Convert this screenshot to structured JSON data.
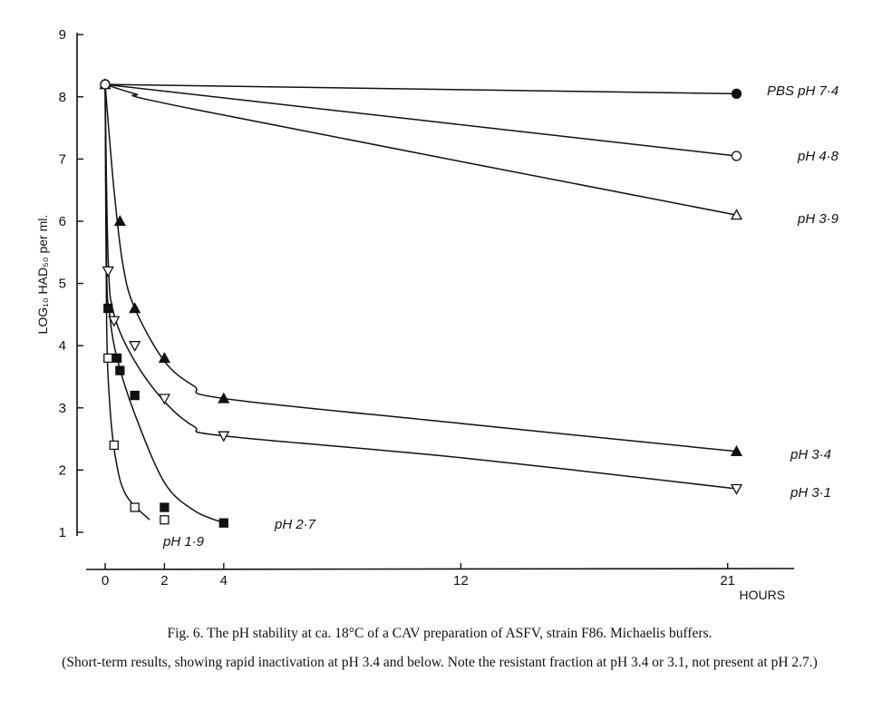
{
  "chart_data": {
    "type": "line",
    "ylabel": "LOG₁₀ HAD₅₀ per ml.",
    "xlabel": "HOURS",
    "xlim": [
      0,
      23
    ],
    "ylim": [
      1,
      9
    ],
    "x_ticks": [
      0,
      2,
      4,
      12,
      21
    ],
    "y_ticks": [
      1,
      2,
      3,
      4,
      5,
      6,
      7,
      8,
      9
    ],
    "grid": false,
    "series": [
      {
        "name": "PBS pH 7·4",
        "marker": "filled-circle",
        "points": [
          [
            0,
            8.2
          ],
          [
            21.3,
            8.05
          ]
        ],
        "curve": [
          [
            0,
            8.2
          ],
          [
            21.3,
            8.05
          ]
        ]
      },
      {
        "name": "pH 4·8",
        "marker": "open-circle",
        "points": [
          [
            0,
            8.2
          ],
          [
            21.3,
            7.05
          ]
        ],
        "curve": [
          [
            0,
            8.2
          ],
          [
            21.3,
            7.05
          ]
        ]
      },
      {
        "name": "pH 3·9",
        "marker": "open-triangle-up",
        "points": [
          [
            0,
            8.2
          ],
          [
            21.3,
            6.1
          ]
        ],
        "curve": [
          [
            0,
            8.2
          ],
          [
            1,
            8.05
          ],
          [
            3,
            7.8
          ],
          [
            21.3,
            6.1
          ]
        ]
      },
      {
        "name": "pH 3·4",
        "marker": "filled-triangle-up",
        "points": [
          [
            0.5,
            6.0
          ],
          [
            1,
            4.6
          ],
          [
            2,
            3.8
          ],
          [
            4,
            3.15
          ],
          [
            21.3,
            2.3
          ]
        ],
        "curve": [
          [
            0,
            8.2
          ],
          [
            0.3,
            6.5
          ],
          [
            0.6,
            5.3
          ],
          [
            1,
            4.6
          ],
          [
            2,
            3.75
          ],
          [
            3,
            3.35
          ],
          [
            4,
            3.15
          ],
          [
            12,
            2.75
          ],
          [
            21.3,
            2.3
          ]
        ]
      },
      {
        "name": "pH 3·1",
        "marker": "open-triangle-down",
        "points": [
          [
            0.1,
            5.2
          ],
          [
            0.3,
            4.4
          ],
          [
            1,
            4.0
          ],
          [
            2,
            3.15
          ],
          [
            4,
            2.55
          ],
          [
            21.3,
            1.7
          ]
        ],
        "curve": [
          [
            0,
            8.2
          ],
          [
            0.1,
            5.4
          ],
          [
            0.3,
            4.5
          ],
          [
            1,
            3.75
          ],
          [
            2,
            3.1
          ],
          [
            3,
            2.7
          ],
          [
            4,
            2.55
          ],
          [
            12,
            2.2
          ],
          [
            21.3,
            1.7
          ]
        ]
      },
      {
        "name": "pH 2·7",
        "marker": "filled-square",
        "points": [
          [
            0.1,
            4.6
          ],
          [
            0.4,
            3.8
          ],
          [
            0.5,
            3.6
          ],
          [
            1,
            3.2
          ],
          [
            2,
            1.4
          ],
          [
            4,
            1.15
          ]
        ],
        "curve": [
          [
            0,
            8.2
          ],
          [
            0.05,
            5.2
          ],
          [
            0.15,
            4.5
          ],
          [
            0.4,
            3.8
          ],
          [
            1,
            2.9
          ],
          [
            2,
            1.8
          ],
          [
            3,
            1.35
          ],
          [
            4,
            1.15
          ]
        ]
      },
      {
        "name": "pH 1·9",
        "marker": "open-square",
        "points": [
          [
            0.1,
            3.8
          ],
          [
            0.3,
            2.4
          ],
          [
            1,
            1.4
          ],
          [
            2,
            1.2
          ]
        ],
        "curve": [
          [
            0,
            8.2
          ],
          [
            0.05,
            4.4
          ],
          [
            0.15,
            3.1
          ],
          [
            0.35,
            2.2
          ],
          [
            0.7,
            1.6
          ],
          [
            1.5,
            1.2
          ]
        ]
      }
    ]
  },
  "caption": {
    "line1": "Fig. 6. The pH stability at ca. 18°C of a CAV preparation of ASFV, strain F86. Michaelis buffers.",
    "line2": "(Short-term results, showing rapid inactivation at pH 3.4 and below. Note the resistant fraction at pH 3.4 or 3.1, not present at pH 2.7.)"
  }
}
